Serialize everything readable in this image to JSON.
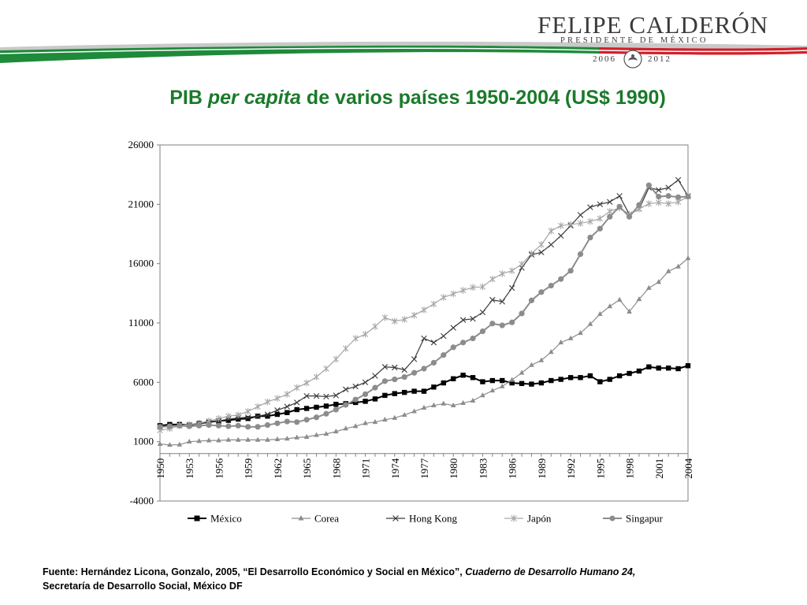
{
  "header": {
    "logo_name": "FELIPE CALDERÓN",
    "logo_subtitle": "PRESIDENTE DE MÉXICO",
    "term_start": "2006",
    "term_end": "2012",
    "colors": {
      "green": "#1e8a3a",
      "red": "#d0202a",
      "gray": "#b5b5b5"
    }
  },
  "title": {
    "prefix": "PIB",
    "italic": "per capita",
    "rest": "de varios países 1950-2004 (US$ 1990)"
  },
  "source": {
    "line1_plain": "Fuente: Hernández Licona, Gonzalo, 2005, “El Desarrollo Económico y Social en México”,",
    "line1_italic": "Cuaderno de Desarrollo Humano 24,",
    "line2": "Secretaría de Desarrollo Social, México DF"
  },
  "chart_data": {
    "type": "line",
    "title": "PIB per capita de varios países 1950-2004 (US$ 1990)",
    "xlabel": "",
    "ylabel": "",
    "x": [
      1950,
      1951,
      1952,
      1953,
      1954,
      1955,
      1956,
      1957,
      1958,
      1959,
      1960,
      1961,
      1962,
      1963,
      1964,
      1965,
      1966,
      1967,
      1968,
      1969,
      1970,
      1971,
      1972,
      1973,
      1974,
      1975,
      1976,
      1977,
      1978,
      1979,
      1980,
      1981,
      1982,
      1983,
      1984,
      1985,
      1986,
      1987,
      1988,
      1989,
      1990,
      1991,
      1992,
      1993,
      1994,
      1995,
      1996,
      1997,
      1998,
      1999,
      2000,
      2001,
      2002,
      2003,
      2004
    ],
    "x_ticks": [
      "1950",
      "1953",
      "1956",
      "1959",
      "1962",
      "1965",
      "1968",
      "1971",
      "1974",
      "1977",
      "1980",
      "1983",
      "1986",
      "1989",
      "1992",
      "1995",
      "1998",
      "2001",
      "2004"
    ],
    "ylim": [
      -4000,
      26000
    ],
    "y_ticks": [
      "-4000",
      "1000",
      "6000",
      "11000",
      "16000",
      "21000",
      "26000"
    ],
    "legend_position": "bottom",
    "series": [
      {
        "name": "México",
        "marker": "square",
        "color": "#000000",
        "values": [
          2350,
          2450,
          2450,
          2400,
          2550,
          2650,
          2750,
          2800,
          2900,
          2950,
          3150,
          3150,
          3300,
          3450,
          3700,
          3800,
          3900,
          4000,
          4150,
          4200,
          4300,
          4400,
          4600,
          4900,
          5050,
          5150,
          5250,
          5250,
          5600,
          5950,
          6300,
          6600,
          6400,
          6050,
          6150,
          6150,
          5950,
          5900,
          5850,
          5950,
          6150,
          6250,
          6400,
          6400,
          6550,
          6050,
          6250,
          6550,
          6750,
          6950,
          7300,
          7200,
          7200,
          7150,
          7400
        ]
      },
      {
        "name": "Corea",
        "marker": "triangle",
        "color": "#8c8c8c",
        "values": [
          800,
          720,
          750,
          1000,
          1050,
          1100,
          1100,
          1150,
          1150,
          1150,
          1150,
          1150,
          1200,
          1250,
          1350,
          1400,
          1550,
          1650,
          1850,
          2100,
          2300,
          2550,
          2650,
          2850,
          3000,
          3250,
          3550,
          3850,
          4050,
          4200,
          4050,
          4250,
          4450,
          4900,
          5300,
          5650,
          6200,
          6800,
          7450,
          7850,
          8550,
          9350,
          9700,
          10150,
          10900,
          11750,
          12400,
          12950,
          11950,
          13000,
          13950,
          14450,
          15350,
          15750,
          16450
        ]
      },
      {
        "name": "Hong Kong",
        "marker": "cross",
        "color": "#3a3a3a",
        "values": [
          2250,
          2300,
          2350,
          2400,
          2500,
          2600,
          2750,
          2900,
          3000,
          3050,
          3150,
          3300,
          3650,
          3950,
          4300,
          4850,
          4850,
          4800,
          4900,
          5400,
          5650,
          6000,
          6550,
          7300,
          7250,
          7050,
          7950,
          9700,
          9350,
          9900,
          10600,
          11250,
          11350,
          11900,
          12950,
          12800,
          13950,
          15650,
          16750,
          16950,
          17600,
          18350,
          19200,
          20100,
          20750,
          21000,
          21200,
          21700,
          20150,
          20600,
          22400,
          22200,
          22400,
          23050,
          21700
        ]
      },
      {
        "name": "Japón",
        "marker": "asterisk",
        "color": "#a6a6a6",
        "values": [
          1950,
          2100,
          2350,
          2450,
          2550,
          2750,
          2950,
          3150,
          3250,
          3550,
          3950,
          4350,
          4650,
          5000,
          5550,
          5950,
          6450,
          7150,
          7950,
          8850,
          9700,
          10050,
          10700,
          11450,
          11150,
          11300,
          11650,
          12100,
          12600,
          13150,
          13450,
          13750,
          14000,
          14050,
          14700,
          15150,
          15400,
          15950,
          16850,
          17600,
          18750,
          19200,
          19300,
          19400,
          19550,
          19800,
          20400,
          20700,
          20150,
          20600,
          21050,
          21150,
          21050,
          21200,
          21650
        ]
      },
      {
        "name": "Singapur",
        "marker": "circle",
        "color": "#8c8c8c",
        "values": [
          2250,
          2300,
          2350,
          2300,
          2350,
          2400,
          2350,
          2300,
          2350,
          2250,
          2250,
          2400,
          2550,
          2700,
          2650,
          2850,
          3050,
          3350,
          3700,
          4100,
          4550,
          5000,
          5550,
          6100,
          6250,
          6450,
          6800,
          7150,
          7650,
          8300,
          8950,
          9350,
          9700,
          10300,
          10950,
          10800,
          11050,
          11800,
          12900,
          13600,
          14150,
          14700,
          15400,
          16800,
          18200,
          18950,
          19950,
          20800,
          19950,
          20950,
          22600,
          21650,
          21700,
          21600,
          21650
        ]
      }
    ]
  }
}
